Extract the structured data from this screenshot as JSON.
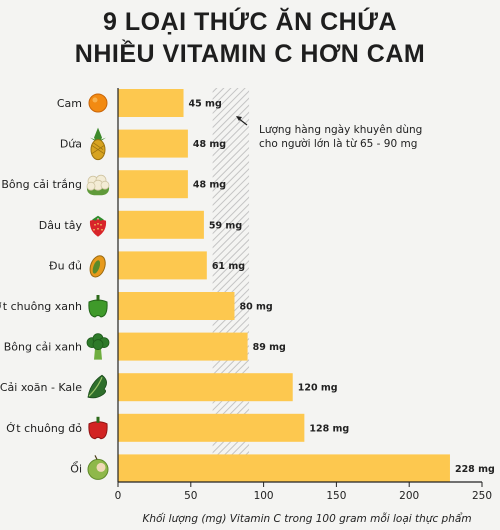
{
  "title_line1": "9 LOẠI THỨC ĂN CHỨA",
  "title_line2": "NHIỀU VITAMIN C HƠN CAM",
  "colors": {
    "bar": "#fdc84f",
    "axis": "#222222",
    "band": "#bdbdbd"
  },
  "chart_data": {
    "type": "bar",
    "orientation": "horizontal",
    "categories": [
      "Cam",
      "Dứa",
      "Bông cải trắng",
      "Dâu tây",
      "Đu đủ",
      "Ớt chuông xanh",
      "Bông cải xanh",
      "Cải xoăn - Kale",
      "Ớt chuông đỏ",
      "Ổi"
    ],
    "values": [
      45,
      48,
      48,
      59,
      61,
      80,
      89,
      120,
      128,
      228
    ],
    "value_labels": [
      "45 mg",
      "48 mg",
      "48 mg",
      "59 mg",
      "61 mg",
      "80 mg",
      "89 mg",
      "120 mg",
      "128 mg",
      "228 mg"
    ],
    "icons": [
      "orange-icon",
      "pineapple-icon",
      "cauliflower-icon",
      "strawberry-icon",
      "papaya-icon",
      "green-bell-pepper-icon",
      "broccoli-icon",
      "kale-icon",
      "red-bell-pepper-icon",
      "guava-icon"
    ],
    "xlabel": "Khối lượng (mg) Vitamin C trong 100 gram mỗi loại thực phẩm",
    "xlim": [
      0,
      250
    ],
    "xticks": [
      0,
      50,
      100,
      150,
      200,
      250
    ],
    "reference_band": {
      "range": [
        65,
        90
      ],
      "annotation_line1": "Lượng hàng ngày khuyên dùng",
      "annotation_line2": "cho người lớn là từ 65 - 90 mg"
    },
    "grid": false
  }
}
